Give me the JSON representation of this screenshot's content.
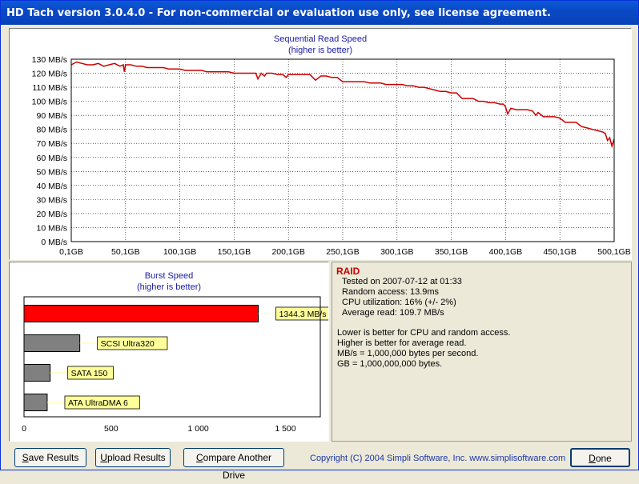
{
  "window": {
    "title": "HD Tach version 3.0.4.0  - For non-commercial or evaluation use only, see license agreement."
  },
  "seq_chart": {
    "title": "Sequential Read Speed",
    "subtitle": "(higher is better)",
    "y_ticks": [
      "130 MB/s",
      "120 MB/s",
      "110 MB/s",
      "100 MB/s",
      "90 MB/s",
      "80 MB/s",
      "70 MB/s",
      "60 MB/s",
      "50 MB/s",
      "40 MB/s",
      "30 MB/s",
      "20 MB/s",
      "10 MB/s",
      "0 MB/s"
    ],
    "x_ticks": [
      "0,1GB",
      "50,1GB",
      "100,1GB",
      "150,1GB",
      "200,1GB",
      "250,1GB",
      "300,1GB",
      "350,1GB",
      "400,1GB",
      "450,1GB",
      "500,1GB"
    ],
    "line_color": "#cc0000"
  },
  "chart_data": [
    {
      "type": "line",
      "title": "Sequential Read Speed",
      "subtitle": "(higher is better)",
      "xlim": [
        0.1,
        500.1
      ],
      "ylim": [
        0,
        130
      ],
      "grid": true,
      "x": [
        0.1,
        5,
        10,
        15,
        20,
        25,
        30,
        35,
        40,
        45,
        48,
        49,
        50,
        52,
        55,
        60,
        65,
        70,
        75,
        80,
        85,
        90,
        95,
        100,
        105,
        110,
        115,
        120,
        125,
        130,
        135,
        140,
        145,
        150,
        155,
        160,
        165,
        170,
        172,
        175,
        178,
        180,
        185,
        190,
        195,
        198,
        200,
        205,
        210,
        215,
        220,
        225,
        230,
        235,
        240,
        245,
        250,
        255,
        260,
        265,
        270,
        275,
        280,
        285,
        290,
        295,
        300,
        305,
        310,
        315,
        320,
        325,
        330,
        335,
        340,
        345,
        350,
        355,
        360,
        365,
        370,
        375,
        380,
        385,
        390,
        395,
        398,
        400,
        402,
        405,
        410,
        415,
        420,
        425,
        428,
        430,
        435,
        440,
        445,
        450,
        455,
        460,
        465,
        470,
        475,
        480,
        485,
        490,
        492,
        494,
        496,
        498,
        500
      ],
      "y": [
        126,
        128,
        127,
        126,
        126,
        127,
        125,
        126,
        127,
        125,
        126,
        121,
        126,
        126,
        126,
        125,
        125,
        124,
        124,
        124,
        124,
        123,
        123,
        123,
        122,
        122,
        122,
        122,
        121,
        121,
        121,
        121,
        121,
        120,
        120,
        120,
        120,
        120,
        116,
        120,
        118,
        120,
        120,
        119,
        119,
        117,
        119,
        119,
        119,
        119,
        119,
        115,
        118,
        118,
        117,
        117,
        114,
        114,
        114,
        114,
        114,
        113,
        113,
        113,
        112,
        112,
        112,
        112,
        111,
        111,
        110,
        110,
        109,
        108,
        107,
        107,
        106,
        106,
        102,
        102,
        102,
        100,
        100,
        99,
        99,
        98,
        98,
        96,
        91,
        95,
        94,
        94,
        94,
        93,
        90,
        92,
        89,
        89,
        89,
        88,
        85,
        85,
        85,
        82,
        81,
        80,
        79,
        78,
        77,
        72,
        74,
        68,
        73
      ]
    },
    {
      "type": "bar",
      "title": "Burst Speed",
      "subtitle": "(higher is better)",
      "categories": [
        "RAID",
        "SCSI Ultra320",
        "SATA 150",
        "ATA UltraDMA 6"
      ],
      "values": [
        1344.3,
        320,
        150,
        133
      ],
      "xlim": [
        0,
        1700
      ],
      "bar_labels": [
        "1344.3 MB/s",
        "SCSI Ultra320",
        "SATA 150",
        "ATA UltraDMA 6"
      ],
      "x_ticks": [
        "0",
        "500",
        "1 000",
        "1 500"
      ],
      "colors": [
        "#ff0000",
        "#808080",
        "#808080",
        "#808080"
      ]
    }
  ],
  "burst_chart": {
    "title": "Burst Speed",
    "subtitle": "(higher is better)",
    "x_ticks": [
      "0",
      "500",
      "1 000",
      "1 500"
    ],
    "label_color": "#ffff99"
  },
  "info": {
    "drive_name": "RAID",
    "tested_on": "Tested on 2007-07-12 at 01:33",
    "random_access": "Random access: 13.9ms",
    "cpu_util": "CPU utilization: 16% (+/- 2%)",
    "avg_read": "Average read: 109.7 MB/s",
    "notes": [
      "Lower is better for CPU and random access.",
      "Higher is better for average read.",
      "MB/s = 1,000,000 bytes per second.",
      "GB = 1,000,000,000 bytes."
    ]
  },
  "footer": {
    "save_label_u": "S",
    "save_label_rest": "ave Results",
    "upload_label_u": "U",
    "upload_label_rest": "pload Results",
    "compare_label_u": "C",
    "compare_label_rest": "ompare Another Drive",
    "done_label_u": "D",
    "done_label_rest": "one",
    "copyright": "Copyright (C) 2004 Simpli Software, Inc. www.simplisoftware.com"
  }
}
